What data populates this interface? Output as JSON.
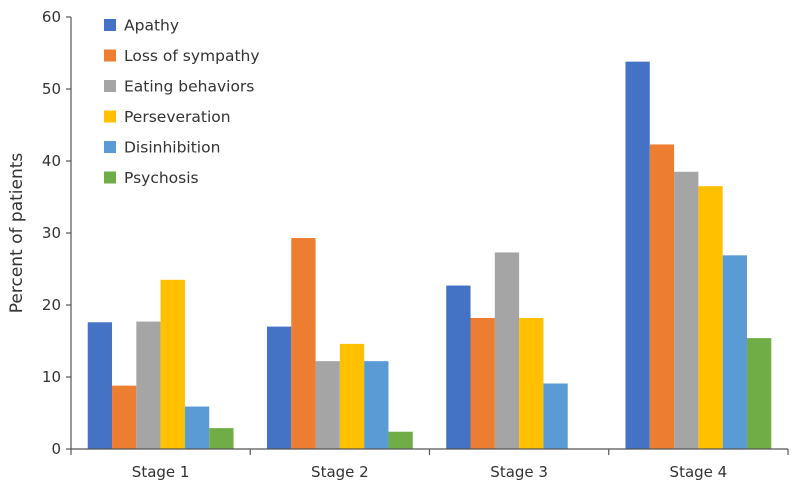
{
  "chart_data": {
    "type": "bar",
    "title": "",
    "xlabel": "",
    "ylabel": "Percent of patients",
    "ylim": [
      0,
      60
    ],
    "yticks": [
      0,
      10,
      20,
      30,
      40,
      50,
      60
    ],
    "grid": false,
    "legend_position": "top-left",
    "categories": [
      "Stage 1",
      "Stage 2",
      "Stage 3",
      "Stage 4"
    ],
    "series": [
      {
        "name": "Apathy",
        "color": "#4472C4",
        "values": [
          17.6,
          17.0,
          22.7,
          53.8
        ]
      },
      {
        "name": "Loss of sympathy",
        "color": "#ED7D31",
        "values": [
          8.8,
          29.3,
          18.2,
          42.3
        ]
      },
      {
        "name": "Eating behaviors",
        "color": "#A5A5A5",
        "values": [
          17.7,
          12.2,
          27.3,
          38.5
        ]
      },
      {
        "name": "Perseveration",
        "color": "#FFC000",
        "values": [
          23.5,
          14.6,
          18.2,
          36.5
        ]
      },
      {
        "name": "Disinhibition",
        "color": "#5B9BD5",
        "values": [
          5.9,
          12.2,
          9.1,
          26.9
        ]
      },
      {
        "name": "Psychosis",
        "color": "#70AD47",
        "values": [
          2.9,
          2.4,
          0,
          15.4
        ]
      }
    ]
  }
}
